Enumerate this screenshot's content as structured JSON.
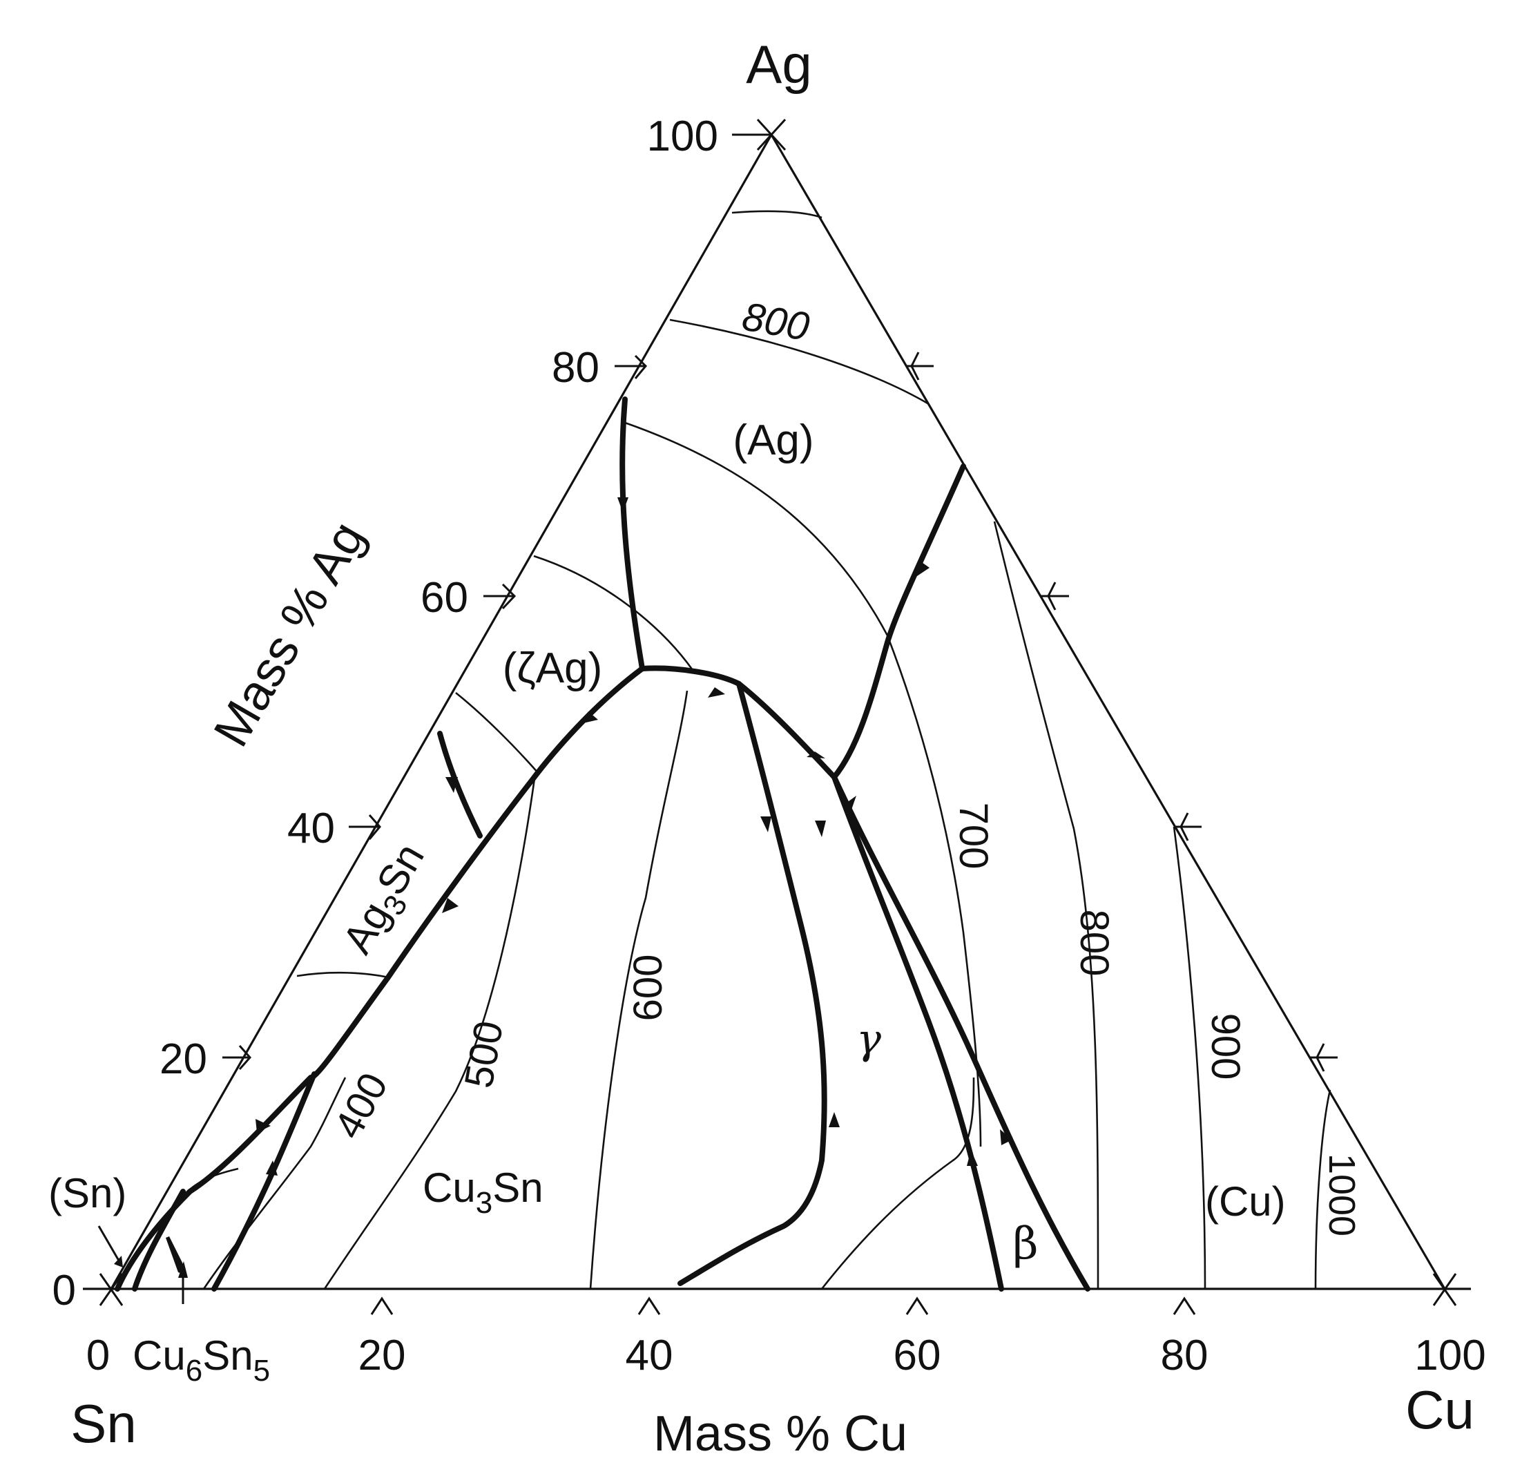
{
  "diagram": {
    "vertices": {
      "top": "Ag",
      "left": "Sn",
      "right": "Cu"
    },
    "axes": {
      "left_axis_label": "Mass % Ag",
      "bottom_axis_label": "Mass % Cu",
      "left_ticks": [
        "0",
        "20",
        "40",
        "60",
        "80",
        "100"
      ],
      "bottom_ticks": [
        "0",
        "20",
        "40",
        "60",
        "80",
        "100"
      ]
    },
    "phase_fields": {
      "ag": "(Ag)",
      "zeta_ag": "(ζAg)",
      "ag3sn_pre": "Ag",
      "ag3sn_sub": "3",
      "ag3sn_post": "Sn",
      "cu3sn_pre": "Cu",
      "cu3sn_sub": "3",
      "cu3sn_post": "Sn",
      "cu6sn5_a": "Cu",
      "cu6sn5_b": "6",
      "cu6sn5_c": "Sn",
      "cu6sn5_d": "5",
      "sn": "(Sn)",
      "cu": "(Cu)",
      "gamma": "γ",
      "beta": "β"
    },
    "isotherm_labels": {
      "iso_800_top": "800",
      "iso_700": "700",
      "iso_800_right": "800",
      "iso_900": "900",
      "iso_1000": "1000",
      "iso_600": "600",
      "iso_500": "500",
      "iso_400": "400"
    }
  }
}
